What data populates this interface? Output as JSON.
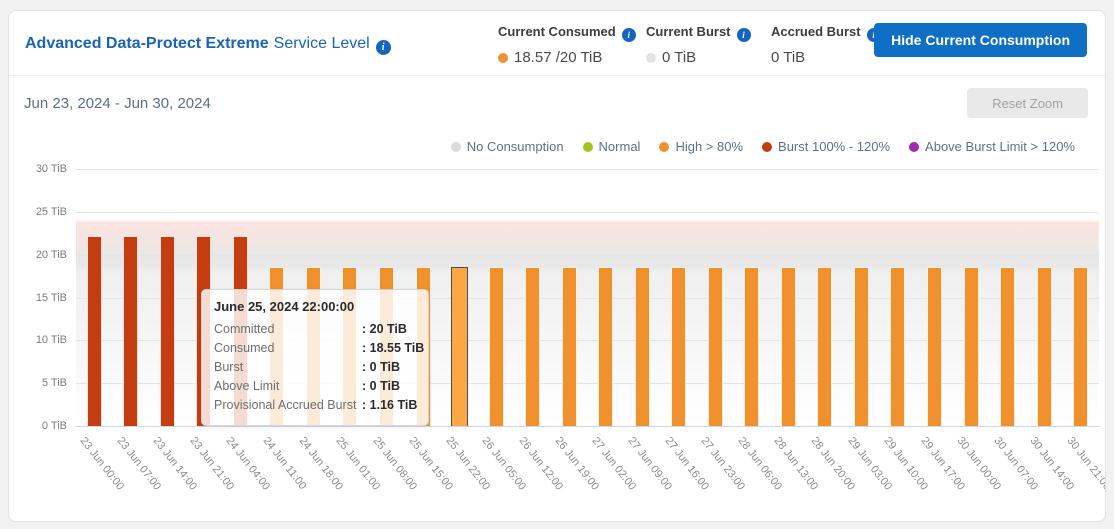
{
  "header": {
    "title_bold": "Advanced Data-Protect Extreme",
    "title_rest": "Service Level",
    "stats": [
      {
        "label": "Current Consumed",
        "value": "18.57 /20 TiB",
        "dot_color": "#f0912d"
      },
      {
        "label": "Current Burst",
        "value": "0 TiB",
        "dot_color": "#e3e3e3"
      },
      {
        "label": "Accrued Burst",
        "value": "0 TiB",
        "dot_color": null
      }
    ],
    "button_label": "Hide Current Consumption"
  },
  "toolbar": {
    "date_range": "Jun 23, 2024 - Jun 30, 2024",
    "reset_zoom_label": "Reset Zoom"
  },
  "legend": [
    {
      "label": "No Consumption",
      "color": "#dcdcdc"
    },
    {
      "label": "Normal",
      "color": "#a3c41c"
    },
    {
      "label": "High > 80%",
      "color": "#f0912d"
    },
    {
      "label": "Burst 100% - 120%",
      "color": "#c43d10"
    },
    {
      "label": "Above Burst Limit > 120%",
      "color": "#a22bb5"
    }
  ],
  "tooltip": {
    "title": "June 25, 2024 22:00:00",
    "rows": [
      {
        "label": "Committed",
        "value": "20 TiB"
      },
      {
        "label": "Consumed",
        "value": "18.55 TiB"
      },
      {
        "label": "Burst",
        "value": "0 TiB"
      },
      {
        "label": "Above Limit",
        "value": "0 TiB"
      },
      {
        "label": "Provisional Accrued Burst",
        "value": "1.16 TiB"
      }
    ]
  },
  "chart_data": {
    "type": "bar",
    "title": "",
    "xlabel": "",
    "ylabel": "TiB",
    "ylim": [
      0,
      30
    ],
    "yticks": [
      {
        "value": 0,
        "label": "0 TiB"
      },
      {
        "value": 5,
        "label": "5 TiB"
      },
      {
        "value": 10,
        "label": "10 TiB"
      },
      {
        "value": 15,
        "label": "15 TiB"
      },
      {
        "value": 20,
        "label": "20 TiB"
      },
      {
        "value": 25,
        "label": "25 TiB"
      },
      {
        "value": 30,
        "label": "30 TiB"
      }
    ],
    "committed_tib": 20,
    "burst_limit_tib": 24,
    "current_consumed_tib": 18.57,
    "grid": true,
    "legend_position": "top-right",
    "highlighted_index": 10,
    "categories": [
      "23 Jun 00:00",
      "23 Jun 07:00",
      "23 Jun 14:00",
      "23 Jun 21:00",
      "24 Jun 04:00",
      "24 Jun 11:00",
      "24 Jun 18:00",
      "25 Jun 01:00",
      "25 Jun 08:00",
      "25 Jun 15:00",
      "25 Jun 22:00",
      "26 Jun 05:00",
      "26 Jun 12:00",
      "26 Jun 19:00",
      "27 Jun 02:00",
      "27 Jun 09:00",
      "27 Jun 16:00",
      "27 Jun 23:00",
      "28 Jun 06:00",
      "28 Jun 13:00",
      "28 Jun 20:00",
      "29 Jun 03:00",
      "29 Jun 10:00",
      "29 Jun 17:00",
      "30 Jun 00:00",
      "30 Jun 07:00",
      "30 Jun 14:00",
      "30 Jun 21:00"
    ],
    "values": [
      22.2,
      22.2,
      22.2,
      22.2,
      22.2,
      18.55,
      18.55,
      18.55,
      18.55,
      18.55,
      18.55,
      18.55,
      18.55,
      18.55,
      18.55,
      18.55,
      18.55,
      18.55,
      18.55,
      18.55,
      18.55,
      18.55,
      18.55,
      18.55,
      18.55,
      18.55,
      18.55,
      18.55
    ],
    "states": [
      "burst",
      "burst",
      "burst",
      "burst",
      "burst",
      "high",
      "high",
      "high",
      "high",
      "high",
      "high",
      "high",
      "high",
      "high",
      "high",
      "high",
      "high",
      "high",
      "high",
      "high",
      "high",
      "high",
      "high",
      "high",
      "high",
      "high",
      "high",
      "high"
    ],
    "colors": {
      "high": "#f0912d",
      "burst": "#c43d10",
      "highlight_fill": "#f9a845"
    }
  }
}
